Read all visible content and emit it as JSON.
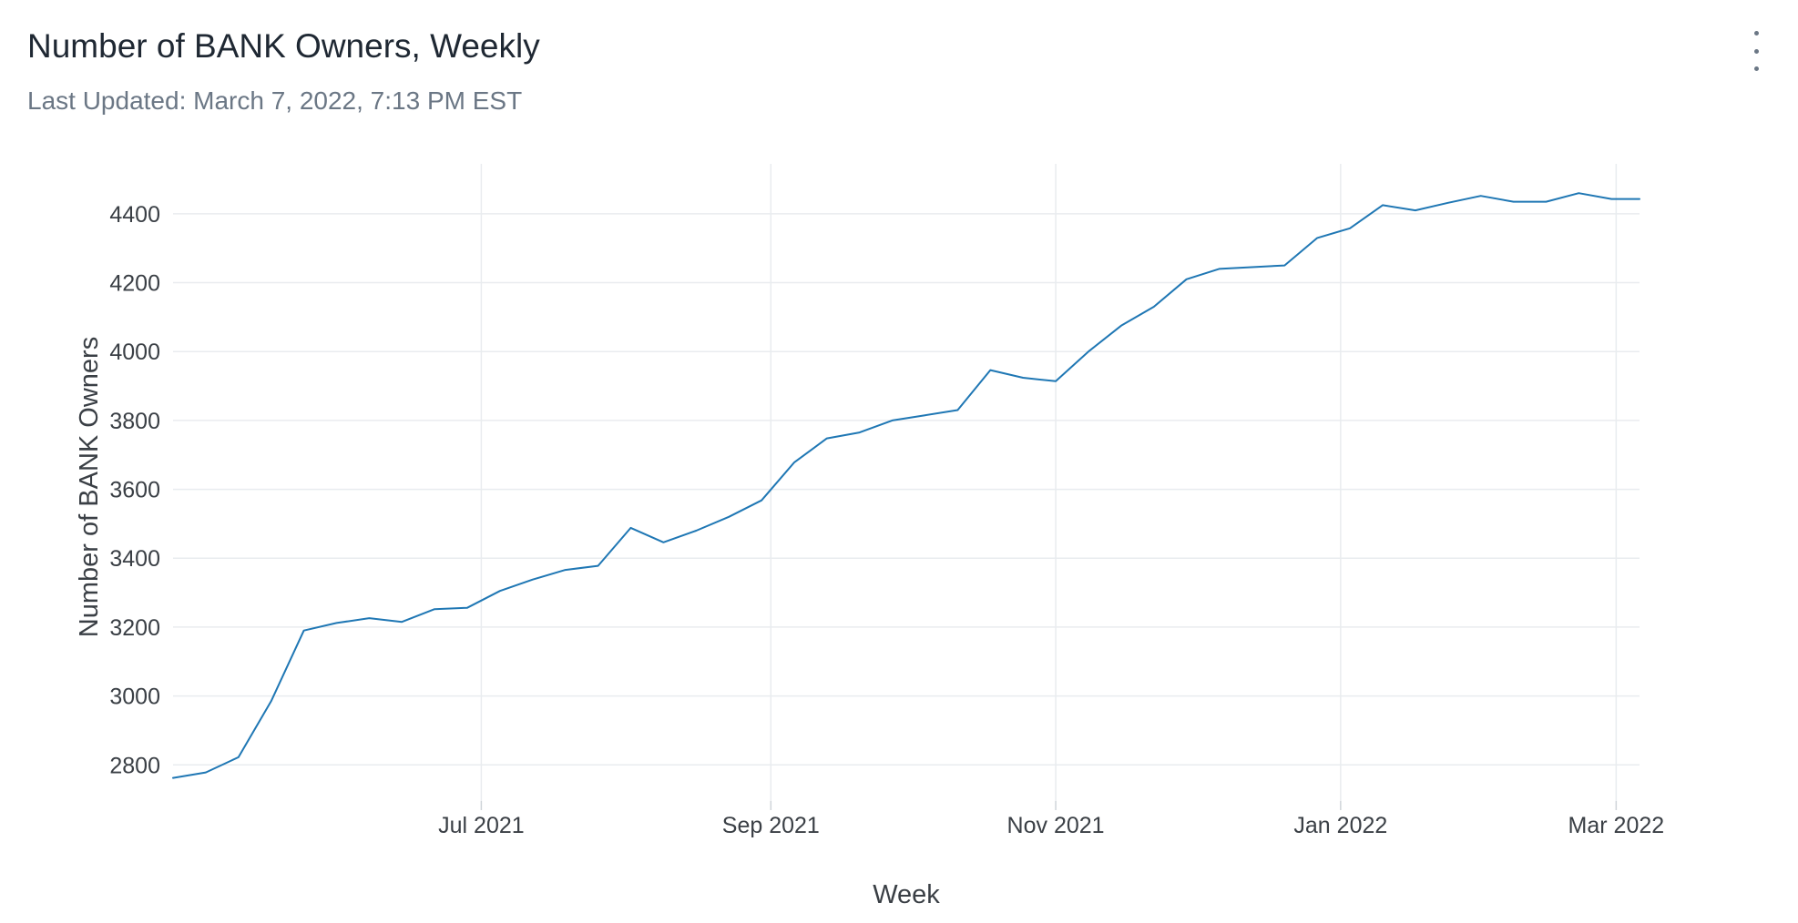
{
  "header": {
    "title": "Number of BANK Owners, Weekly",
    "subtitle": "Last Updated: March 7, 2022, 7:13 PM EST",
    "menu_icon": "more-vertical-icon"
  },
  "chart_data": {
    "type": "line",
    "xlabel": "Week",
    "ylabel": "Number of BANK Owners",
    "xlim": [
      "2021-04-26",
      "2022-03-06"
    ],
    "ylim": [
      2695,
      4545
    ],
    "grid": true,
    "legend": "none",
    "line_color": "#1f77b4",
    "y_ticks": [
      2800,
      3000,
      3200,
      3400,
      3600,
      3800,
      4000,
      4200,
      4400
    ],
    "x_ticks": [
      {
        "date": "2021-07-01",
        "label": "Jul 2021"
      },
      {
        "date": "2021-09-01",
        "label": "Sep 2021"
      },
      {
        "date": "2021-11-01",
        "label": "Nov 2021"
      },
      {
        "date": "2022-01-01",
        "label": "Jan 2022"
      },
      {
        "date": "2022-03-01",
        "label": "Mar 2022"
      }
    ],
    "series": [
      {
        "x": [
          "2021-04-26",
          "2021-05-03",
          "2021-05-10",
          "2021-05-17",
          "2021-05-24",
          "2021-05-31",
          "2021-06-07",
          "2021-06-14",
          "2021-06-21",
          "2021-06-28",
          "2021-07-05",
          "2021-07-12",
          "2021-07-19",
          "2021-07-26",
          "2021-08-02",
          "2021-08-09",
          "2021-08-16",
          "2021-08-23",
          "2021-08-30",
          "2021-09-06",
          "2021-09-13",
          "2021-09-20",
          "2021-09-27",
          "2021-10-04",
          "2021-10-11",
          "2021-10-18",
          "2021-10-25",
          "2021-11-01",
          "2021-11-08",
          "2021-11-15",
          "2021-11-22",
          "2021-11-29",
          "2021-12-06",
          "2021-12-13",
          "2021-12-20",
          "2021-12-27",
          "2022-01-03",
          "2022-01-10",
          "2022-01-17",
          "2022-01-24",
          "2022-01-31",
          "2022-02-07",
          "2022-02-14",
          "2022-02-21",
          "2022-02-28",
          "2022-03-06"
        ],
        "y": [
          2762,
          2778,
          2822,
          2985,
          3190,
          3212,
          3226,
          3215,
          3252,
          3256,
          3305,
          3338,
          3366,
          3378,
          3488,
          3446,
          3480,
          3520,
          3568,
          3678,
          3748,
          3765,
          3800,
          3815,
          3830,
          3946,
          3924,
          3914,
          4000,
          4075,
          4130,
          4210,
          4240,
          4245,
          4250,
          4330,
          4358,
          4425,
          4410,
          4432,
          4452,
          4435,
          4435,
          4460,
          4443,
          4443
        ]
      }
    ]
  }
}
